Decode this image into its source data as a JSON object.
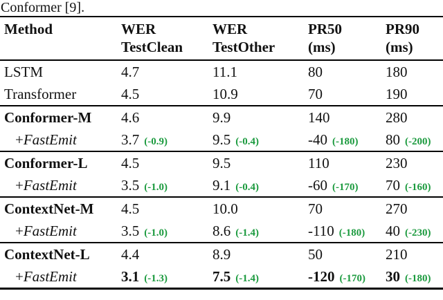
{
  "caption": "Conformer [9].",
  "colors": {
    "delta_green": "#1b9a3e"
  },
  "header": {
    "col0": {
      "l1": "Method",
      "l2": ""
    },
    "col1": {
      "l1": "WER",
      "l2": "TestClean"
    },
    "col2": {
      "l1": "WER",
      "l2": "TestOther"
    },
    "col3": {
      "l1": "PR50",
      "l2": "(ms)"
    },
    "col4": {
      "l1": "PR90",
      "l2": "(ms)"
    }
  },
  "rows": [
    {
      "method": "LSTM",
      "cells": [
        {
          "v": "4.7",
          "d": ""
        },
        {
          "v": "11.1",
          "d": ""
        },
        {
          "v": "80",
          "d": ""
        },
        {
          "v": "180",
          "d": ""
        }
      ]
    },
    {
      "method": "Transformer",
      "cells": [
        {
          "v": "4.5",
          "d": ""
        },
        {
          "v": "10.9",
          "d": ""
        },
        {
          "v": "70",
          "d": ""
        },
        {
          "v": "190",
          "d": ""
        }
      ]
    },
    {
      "method": "Conformer-M",
      "cells": [
        {
          "v": "4.6",
          "d": ""
        },
        {
          "v": "9.9",
          "d": ""
        },
        {
          "v": "140",
          "d": ""
        },
        {
          "v": "280",
          "d": ""
        }
      ]
    },
    {
      "method_prefix": "+",
      "method": "FastEmit",
      "cells": [
        {
          "v": "3.7",
          "d": "(-0.9)"
        },
        {
          "v": "9.5",
          "d": "(-0.4)"
        },
        {
          "v": "-40",
          "d": "(-180)"
        },
        {
          "v": "80",
          "d": "(-200)"
        }
      ]
    },
    {
      "method": "Conformer-L",
      "cells": [
        {
          "v": "4.5",
          "d": ""
        },
        {
          "v": "9.5",
          "d": ""
        },
        {
          "v": "110",
          "d": ""
        },
        {
          "v": "230",
          "d": ""
        }
      ]
    },
    {
      "method_prefix": "+",
      "method": "FastEmit",
      "cells": [
        {
          "v": "3.5",
          "d": "(-1.0)"
        },
        {
          "v": "9.1",
          "d": "(-0.4)"
        },
        {
          "v": "-60",
          "d": "(-170)"
        },
        {
          "v": "70",
          "d": "(-160)"
        }
      ]
    },
    {
      "method": "ContextNet-M",
      "cells": [
        {
          "v": "4.5",
          "d": ""
        },
        {
          "v": "10.0",
          "d": ""
        },
        {
          "v": "70",
          "d": ""
        },
        {
          "v": "270",
          "d": ""
        }
      ]
    },
    {
      "method_prefix": "+",
      "method": "FastEmit",
      "cells": [
        {
          "v": "3.5",
          "d": "(-1.0)"
        },
        {
          "v": "8.6",
          "d": "(-1.4)"
        },
        {
          "v": "-110",
          "d": "(-180)"
        },
        {
          "v": "40",
          "d": "(-230)"
        }
      ]
    },
    {
      "method": "ContextNet-L",
      "cells": [
        {
          "v": "4.4",
          "d": ""
        },
        {
          "v": "8.9",
          "d": ""
        },
        {
          "v": "50",
          "d": ""
        },
        {
          "v": "210",
          "d": ""
        }
      ]
    },
    {
      "method_prefix": "+",
      "method": "FastEmit",
      "cells": [
        {
          "v": "3.1",
          "d": "(-1.3)"
        },
        {
          "v": "7.5",
          "d": "(-1.4)"
        },
        {
          "v": "-120",
          "d": "(-170)"
        },
        {
          "v": "30",
          "d": "(-180)"
        }
      ]
    }
  ]
}
